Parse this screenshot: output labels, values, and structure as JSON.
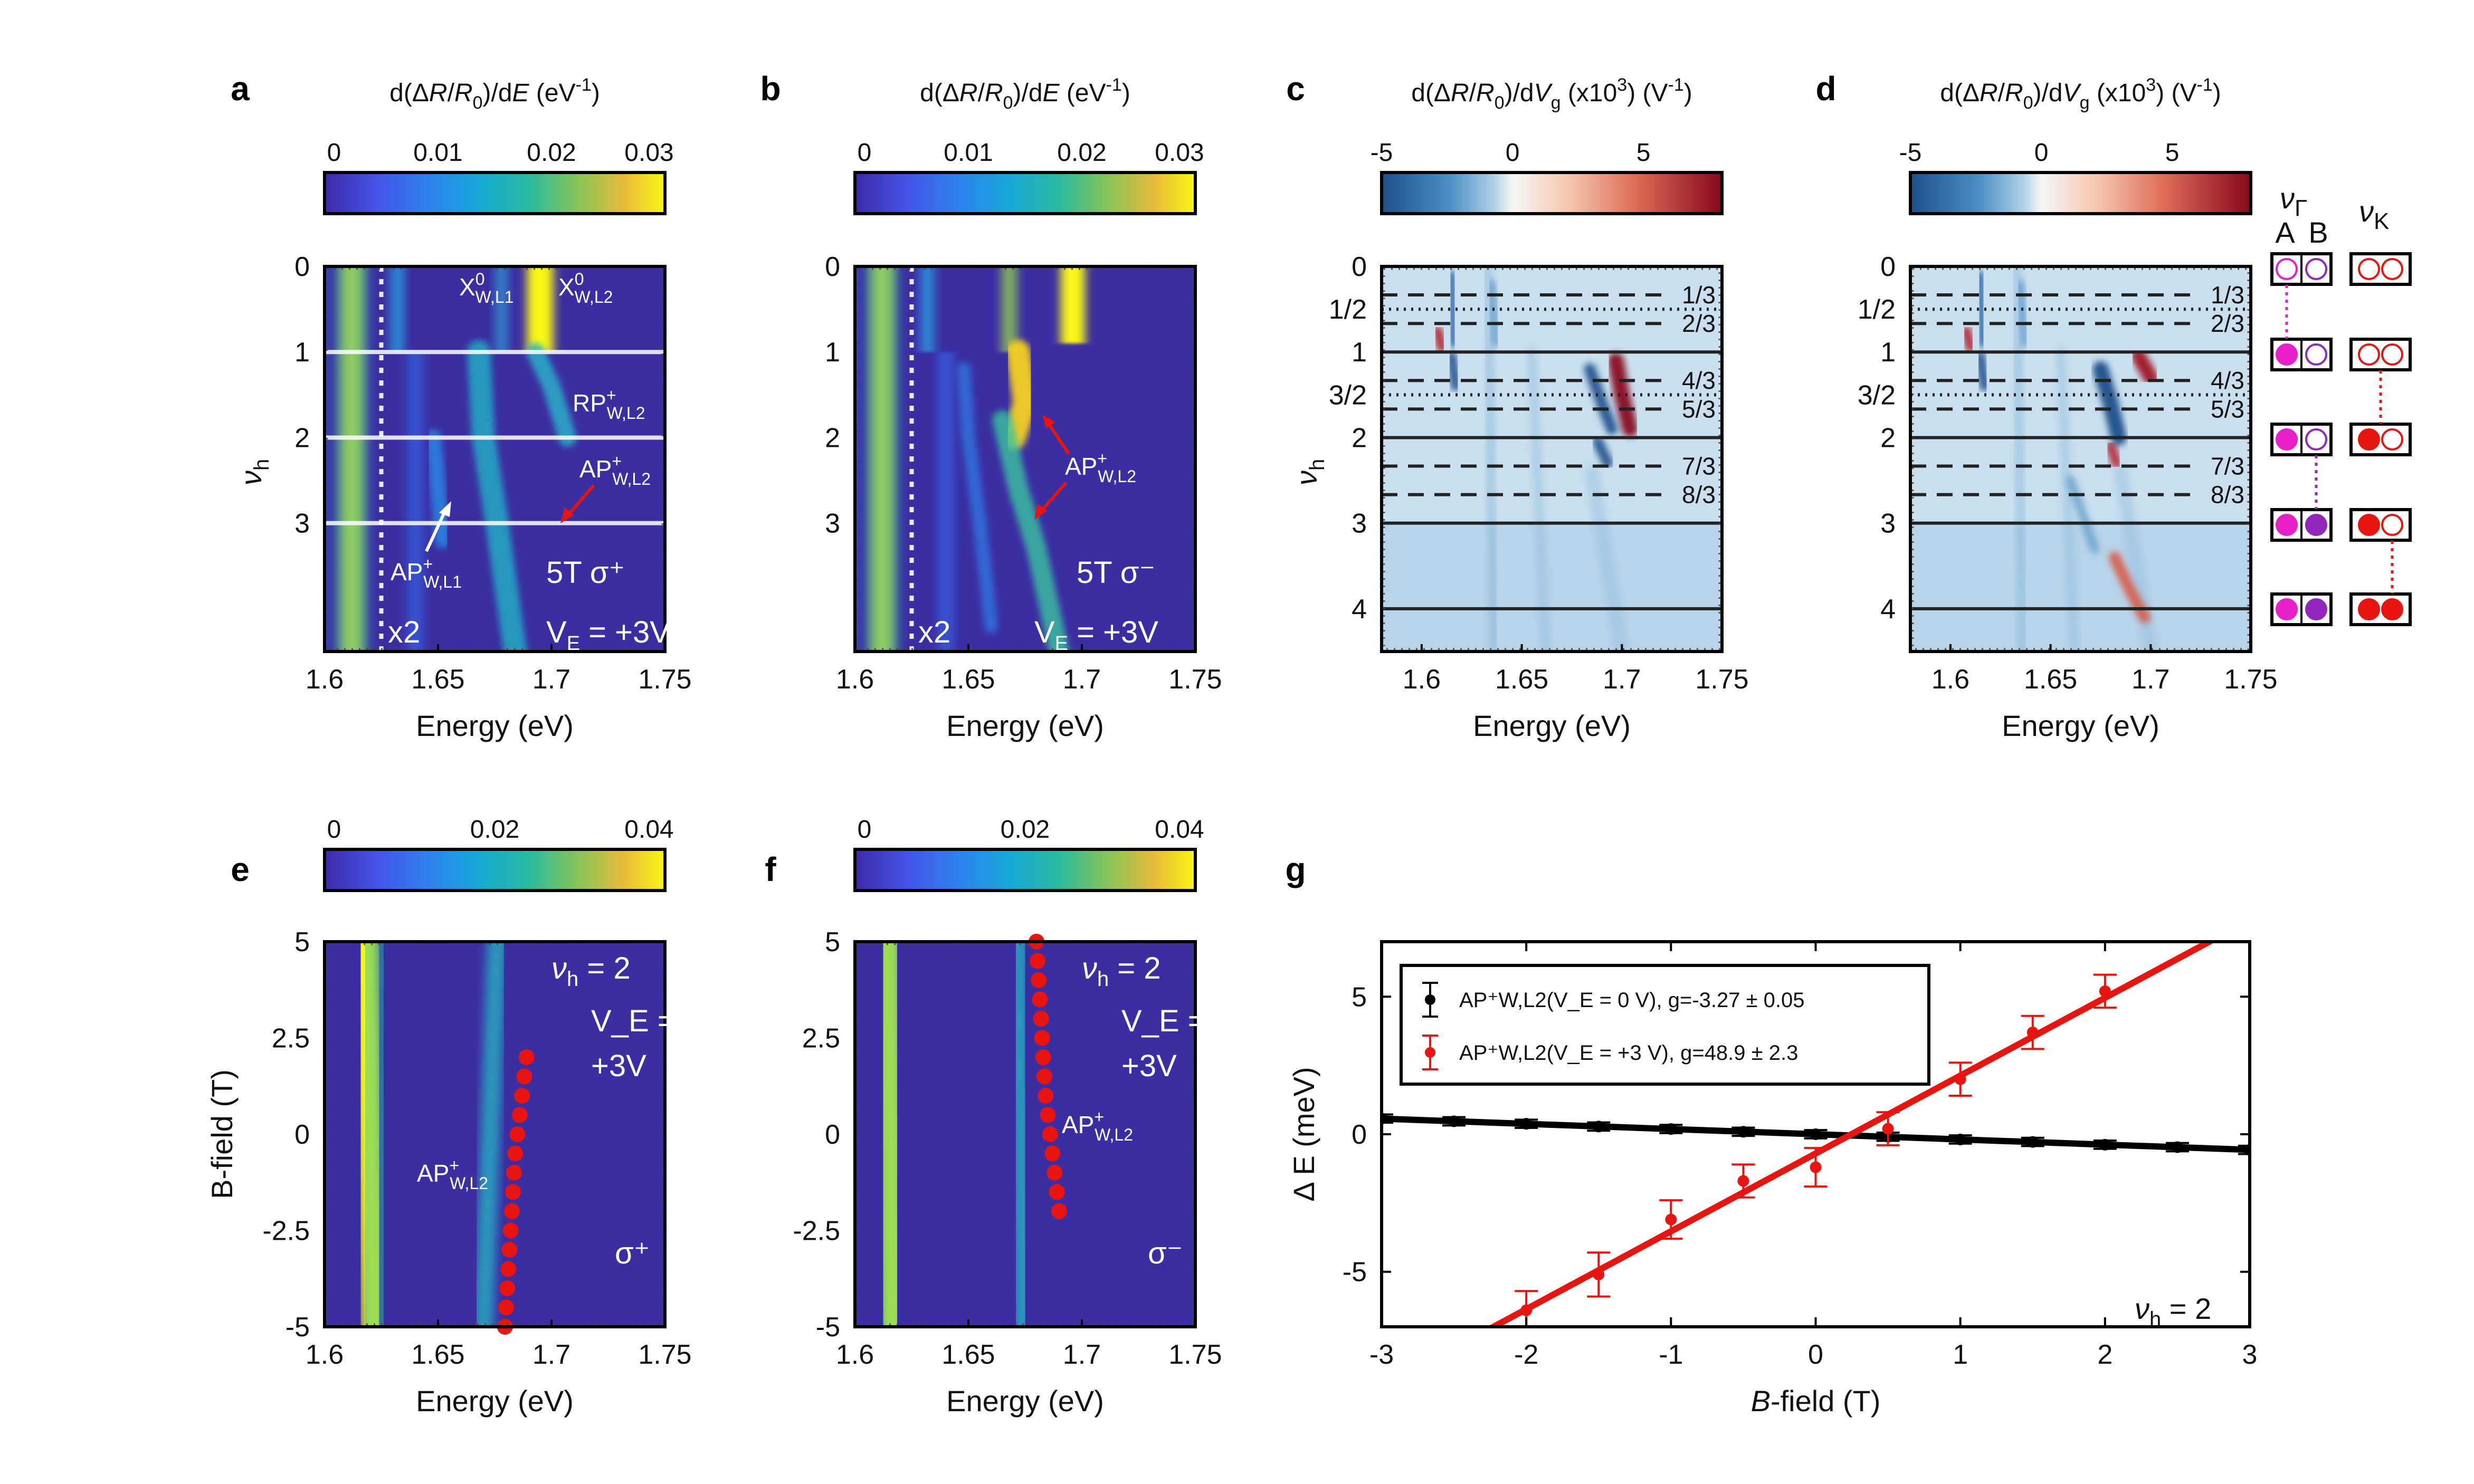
{
  "chart_data": [
    {
      "id": "a",
      "type": "heatmap",
      "panel_label": "a",
      "colorbar": {
        "title": "d(ΔR/R₀)/dE (eV⁻¹)",
        "ticks": [
          "0",
          "0.01",
          "0.02",
          "0.03"
        ],
        "range": [
          0,
          0.03
        ],
        "colormap": "parula"
      },
      "xlabel": "Energy (eV)",
      "xticks": [
        "1.6",
        "1.65",
        "1.7",
        "1.75"
      ],
      "xlim": [
        1.6,
        1.75
      ],
      "ylabel": "ν_h",
      "yticks": [
        "0",
        "1",
        "2",
        "3"
      ],
      "ylim": [
        0,
        4.5
      ],
      "hlines": [
        1,
        2,
        3
      ],
      "vline_energy": 1.625,
      "annotations": [
        "X⁰W,L1",
        "X⁰W,L2",
        "RP⁺W,L2",
        "AP⁺W,L2",
        "AP⁺W,L1",
        "5T  σ⁺",
        "V_E = +3V",
        "x2"
      ],
      "features": [
        {
          "name": "exciton-1.61",
          "energy": 1.612,
          "from": 0,
          "to": 4.5
        },
        {
          "name": "X0-L1",
          "energy": 1.63,
          "from": 0,
          "to": 1
        },
        {
          "name": "X0-L2",
          "energy": 1.695,
          "from": 0,
          "to": 1
        },
        {
          "name": "RP-L2",
          "energy": 1.705,
          "from": 1,
          "to": 2
        },
        {
          "name": "AP-L2",
          "energy": 1.675,
          "from": 2,
          "to": 4.5
        },
        {
          "name": "AP-L1",
          "energy": 1.645,
          "from": 2.2,
          "to": 3.3
        }
      ]
    },
    {
      "id": "b",
      "type": "heatmap",
      "panel_label": "b",
      "colorbar": {
        "title": "d(ΔR/R₀)/dE (eV⁻¹)",
        "ticks": [
          "0",
          "0.01",
          "0.02",
          "0.03"
        ],
        "range": [
          0,
          0.03
        ],
        "colormap": "parula"
      },
      "xlabel": "Energy (eV)",
      "xticks": [
        "1.6",
        "1.65",
        "1.7",
        "1.75"
      ],
      "xlim": [
        1.6,
        1.75
      ],
      "yticks": [
        "0",
        "1",
        "2",
        "3"
      ],
      "ylim": [
        0,
        4.5
      ],
      "vline_energy": 1.625,
      "annotations": [
        "AP⁺W,L2",
        "5T  σ⁻",
        "V_E = +3V",
        "x2"
      ]
    },
    {
      "id": "c",
      "type": "heatmap",
      "panel_label": "c",
      "colorbar": {
        "title": "d(ΔR/R₀)/dV_g (x10³) (V⁻¹)",
        "ticks": [
          "-5",
          "0",
          "5"
        ],
        "range": [
          -5,
          8
        ],
        "colormap": "RdBu"
      },
      "xlabel": "Energy (eV)",
      "xticks": [
        "1.6",
        "1.65",
        "1.7",
        "1.75"
      ],
      "xlim": [
        1.58,
        1.75
      ],
      "ylabel": "ν_h",
      "yticks": [
        "0",
        "1/2",
        "1",
        "3/2",
        "2",
        "3",
        "4"
      ],
      "ylim": [
        0,
        4.5
      ],
      "solid_lines": [
        1,
        2,
        3,
        4
      ],
      "dotted_lines": [
        0.5,
        1.5
      ],
      "dashed_lines": [
        0.333,
        0.667,
        1.333,
        1.667,
        2.333,
        2.667
      ],
      "fraction_labels": [
        "1/3",
        "2/3",
        "4/3",
        "5/3",
        "7/3",
        "8/3"
      ]
    },
    {
      "id": "d",
      "type": "heatmap",
      "panel_label": "d",
      "colorbar": {
        "title": "d(ΔR/R₀)/dV_g (x10³) (V⁻¹)",
        "ticks": [
          "-5",
          "0",
          "5"
        ],
        "range": [
          -5,
          8
        ],
        "colormap": "RdBu"
      },
      "xlabel": "Energy (eV)",
      "xticks": [
        "1.6",
        "1.65",
        "1.7",
        "1.75"
      ],
      "xlim": [
        1.58,
        1.75
      ],
      "yticks": [
        "0",
        "1/2",
        "1",
        "3/2",
        "2",
        "3",
        "4"
      ],
      "ylim": [
        0,
        4.5
      ],
      "fraction_labels": [
        "1/3",
        "2/3",
        "4/3",
        "5/3",
        "7/3",
        "8/3"
      ],
      "filling_schematic": {
        "headers": [
          "ν_Γ",
          "ν_K",
          "A",
          "B"
        ],
        "rows": [
          {
            "nu": 0,
            "A": "empty",
            "B": "empty",
            "K": "empty-empty"
          },
          {
            "nu": 1,
            "A": "filled",
            "B": "empty",
            "K": "empty-empty"
          },
          {
            "nu": 2,
            "A": "filled",
            "B": "empty",
            "K": "filled-empty"
          },
          {
            "nu": 3,
            "A": "filled",
            "B": "filled",
            "K": "filled-empty"
          },
          {
            "nu": 4,
            "A": "filled",
            "B": "filled",
            "K": "filled-filled"
          }
        ]
      }
    },
    {
      "id": "e",
      "type": "heatmap",
      "panel_label": "e",
      "colorbar": {
        "ticks": [
          "0",
          "0.02",
          "0.04"
        ],
        "range": [
          0,
          0.04
        ],
        "colormap": "parula"
      },
      "xlabel": "Energy (eV)",
      "xticks": [
        "1.6",
        "1.65",
        "1.7",
        "1.75"
      ],
      "xlim": [
        1.6,
        1.75
      ],
      "ylabel": "B-field (T)",
      "yticks": [
        "5",
        "2.5",
        "0",
        "-2.5",
        "-5"
      ],
      "ylim": [
        -5,
        5
      ],
      "annotations": [
        "ν_h = 2",
        "V_E =",
        "+3V",
        "AP⁺W,L2",
        "σ⁺"
      ],
      "markers": {
        "B": [
          2,
          1.5,
          1,
          0.5,
          0,
          -0.5,
          -1,
          -1.5,
          -2,
          -2.5,
          -3,
          -3.5,
          -4,
          -4.5,
          -5
        ],
        "energy": [
          1.689,
          1.688,
          1.687,
          1.686,
          1.685,
          1.684,
          1.6835,
          1.683,
          1.6825,
          1.682,
          1.6815,
          1.681,
          1.6805,
          1.68,
          1.6795
        ]
      }
    },
    {
      "id": "f",
      "type": "heatmap",
      "panel_label": "f",
      "colorbar": {
        "ticks": [
          "0",
          "0.02",
          "0.04"
        ],
        "range": [
          0,
          0.04
        ],
        "colormap": "parula"
      },
      "xlabel": "Energy (eV)",
      "xticks": [
        "1.6",
        "1.65",
        "1.7",
        "1.75"
      ],
      "xlim": [
        1.6,
        1.75
      ],
      "yticks": [
        "5",
        "2.5",
        "0",
        "-2.5",
        "-5"
      ],
      "ylim": [
        -5,
        5
      ],
      "annotations": [
        "ν_h = 2",
        "V_E =",
        "+3V",
        "AP⁺W,L2",
        "σ⁻"
      ],
      "markers": {
        "B": [
          5,
          4.5,
          4,
          3.5,
          3,
          2.5,
          2,
          1.5,
          1,
          0.5,
          0,
          -0.5,
          -1,
          -1.5,
          -2
        ],
        "energy": [
          1.68,
          1.6805,
          1.681,
          1.6815,
          1.682,
          1.6825,
          1.683,
          1.6835,
          1.684,
          1.685,
          1.686,
          1.687,
          1.688,
          1.689,
          1.69
        ]
      }
    },
    {
      "id": "g",
      "type": "scatter",
      "panel_label": "g",
      "xlabel": "B-field (T)",
      "ylabel": "Δ E (meV)",
      "xticks": [
        "-3",
        "-2",
        "-1",
        "0",
        "1",
        "2",
        "3"
      ],
      "xlim": [
        -3,
        3
      ],
      "yticks": [
        "5",
        "0",
        "-5"
      ],
      "ylim": [
        -7,
        7
      ],
      "annotation": "ν_h = 2",
      "series": [
        {
          "name": "AP⁺W,L2(V_E = 0 V), g=-3.27 ± 0.05",
          "color": "#000000",
          "x": [
            -3,
            -2.5,
            -2,
            -1.5,
            -1,
            -0.5,
            0,
            0.5,
            1,
            1.5,
            2,
            2.5,
            3
          ],
          "y": [
            0.57,
            0.47,
            0.38,
            0.28,
            0.19,
            0.09,
            0.0,
            -0.09,
            -0.19,
            -0.28,
            -0.38,
            -0.47,
            -0.57
          ],
          "err": [
            0.15,
            0.15,
            0.15,
            0.15,
            0.15,
            0.15,
            0.15,
            0.15,
            0.15,
            0.15,
            0.15,
            0.15,
            0.15
          ],
          "fit": {
            "slope": -0.189,
            "intercept": 0.0
          }
        },
        {
          "name": "AP⁺W,L2(V_E = +3 V), g=48.9 ± 2.3",
          "color": "#e8140f",
          "x": [
            -2,
            -1.5,
            -1,
            -0.5,
            0,
            0.5,
            1,
            1.5,
            2
          ],
          "y": [
            -6.4,
            -5.1,
            -3.1,
            -1.7,
            -1.2,
            0.2,
            2.0,
            3.7,
            5.2
          ],
          "err": [
            0.7,
            0.8,
            0.7,
            0.6,
            0.7,
            0.6,
            0.6,
            0.6,
            0.6
          ],
          "fit": {
            "slope": 2.83,
            "intercept": -0.7
          }
        }
      ]
    }
  ]
}
